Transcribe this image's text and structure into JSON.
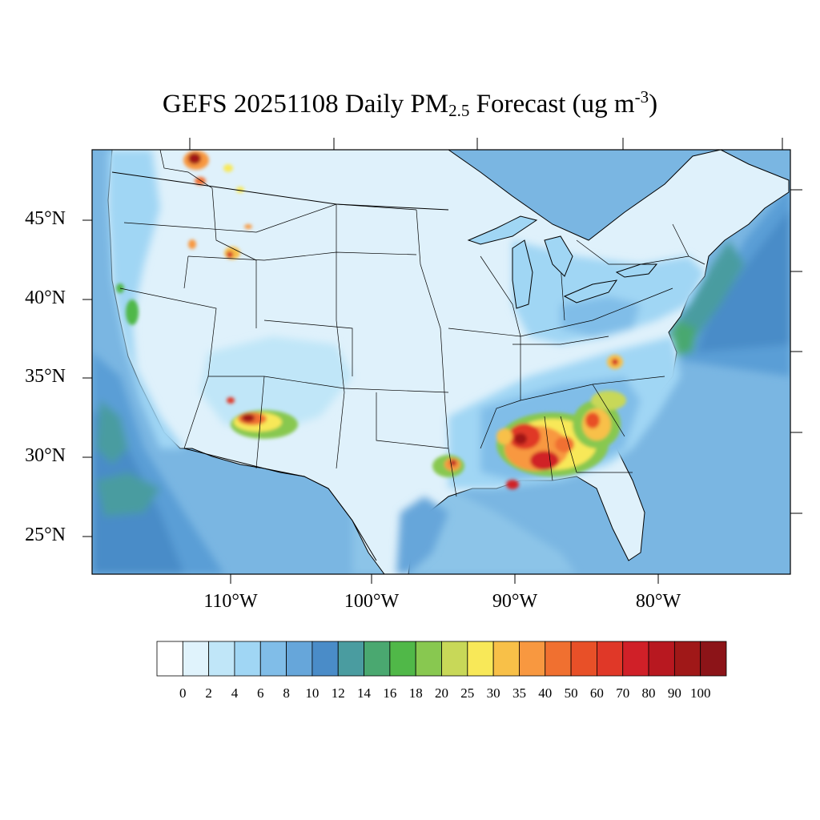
{
  "title": {
    "prefix": "GEFS 20251108 Daily PM",
    "subscript": "2.5",
    "middle": " Forecast (ug m",
    "superscript": "-3",
    "suffix": ")"
  },
  "latitude_labels": [
    "45°N",
    "40°N",
    "35°N",
    "30°N",
    "25°N"
  ],
  "longitude_labels": [
    "110°W",
    "100°W",
    "90°W",
    "80°W"
  ],
  "colorbar": {
    "labels": [
      "0",
      "2",
      "4",
      "6",
      "8",
      "10",
      "12",
      "14",
      "16",
      "18",
      "20",
      "25",
      "30",
      "35",
      "40",
      "50",
      "60",
      "70",
      "80",
      "90",
      "100"
    ],
    "colors": [
      "#ffffff",
      "#e0f3fc",
      "#c0e6f8",
      "#a0d6f4",
      "#80bde8",
      "#66a6da",
      "#4a8cc8",
      "#4a9ca0",
      "#4aa870",
      "#50b848",
      "#88c850",
      "#c8d858",
      "#f8e858",
      "#f8c048",
      "#f89840",
      "#f07030",
      "#e85028",
      "#e03828",
      "#d02028",
      "#b81820",
      "#a01818",
      "#8c1418"
    ]
  },
  "map": {
    "ocean_color": "#7ab6e2",
    "land_color": "#dff1fb"
  }
}
